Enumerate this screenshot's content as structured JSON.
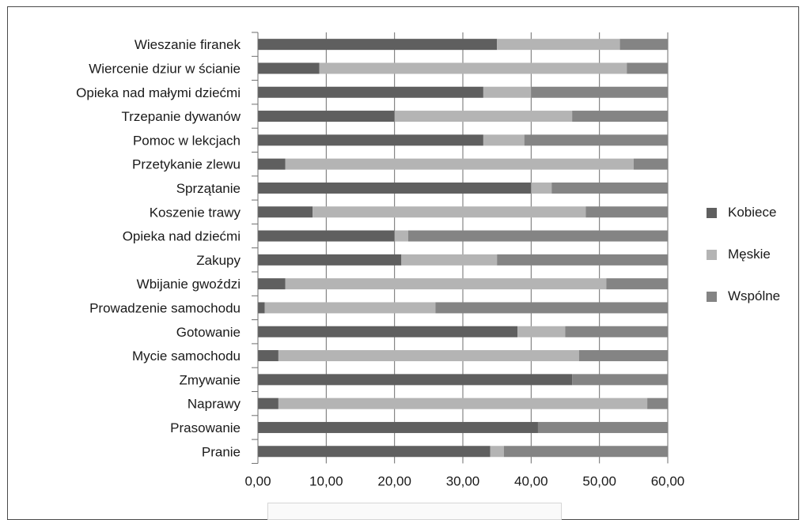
{
  "chart_data": {
    "type": "bar",
    "orientation": "horizontal",
    "stacked": true,
    "categories": [
      "Wieszanie firanek",
      "Wiercenie dziur w ścianie",
      "Opieka nad małymi dziećmi",
      "Trzepanie dywanów",
      "Pomoc w lekcjach",
      "Przetykanie zlewu",
      "Sprzątanie",
      "Koszenie trawy",
      "Opieka nad dziećmi",
      "Zakupy",
      "Wbijanie gwoździ",
      "Prowadzenie samochodu",
      "Gotowanie",
      "Mycie samochodu",
      "Zmywanie",
      "Naprawy",
      "Prasowanie",
      "Pranie"
    ],
    "series": [
      {
        "name": "Kobiece",
        "color": "#5f5f5f",
        "values": [
          35.0,
          9.0,
          33.0,
          20.0,
          33.0,
          4.0,
          40.0,
          8.0,
          20.0,
          21.0,
          4.0,
          1.0,
          38.0,
          3.0,
          46.0,
          3.0,
          41.0,
          34.0
        ]
      },
      {
        "name": "Męskie",
        "color": "#b4b4b4",
        "values": [
          18.0,
          45.0,
          7.0,
          26.0,
          6.0,
          51.0,
          3.0,
          40.0,
          2.0,
          14.0,
          47.0,
          25.0,
          7.0,
          44.0,
          0.0,
          54.0,
          0.0,
          2.0
        ]
      },
      {
        "name": "Wspólne",
        "color": "#848484",
        "values": [
          7.0,
          6.0,
          20.0,
          14.0,
          21.0,
          5.0,
          17.0,
          12.0,
          38.0,
          25.0,
          9.0,
          34.0,
          15.0,
          13.0,
          14.0,
          3.0,
          19.0,
          24.0
        ]
      }
    ],
    "xticks": [
      "0,00",
      "10,00",
      "20,00",
      "30,00",
      "40,00",
      "50,00",
      "60,00"
    ],
    "xlim": [
      0,
      60
    ],
    "grid": "vertical",
    "legend": "right"
  }
}
